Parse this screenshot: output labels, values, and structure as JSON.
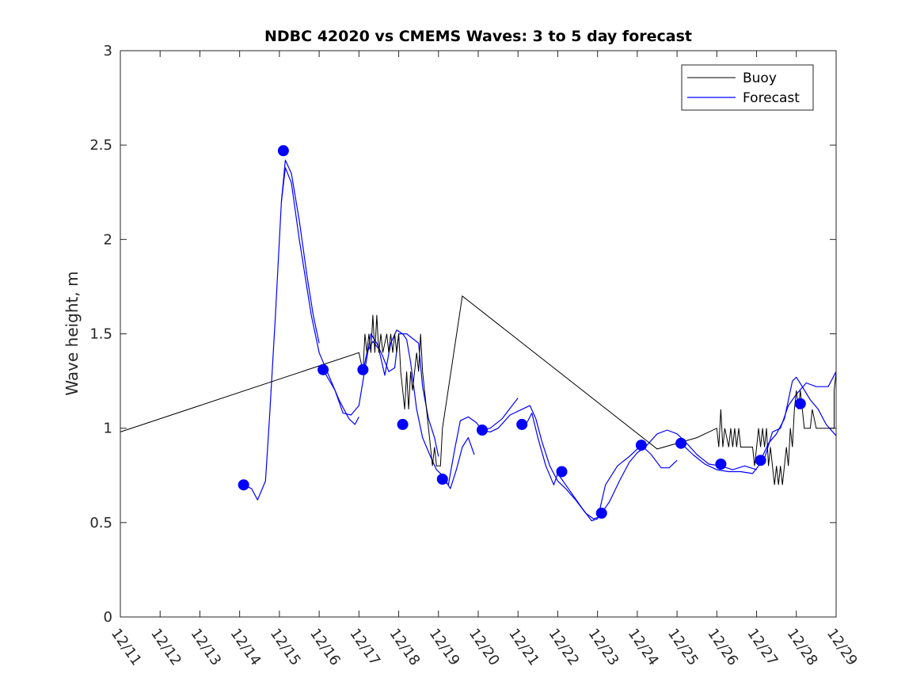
{
  "chart_data": {
    "type": "line",
    "title": "NDBC 42020 vs CMEMS Waves: 3 to 5 day forecast",
    "xlabel": "",
    "ylabel": "Wave height, m",
    "xlim": [
      0,
      18
    ],
    "ylim": [
      0,
      3
    ],
    "x_tick_labels": [
      "12/11",
      "12/12",
      "12/13",
      "12/14",
      "12/15",
      "12/16",
      "12/17",
      "12/18",
      "12/19",
      "12/20",
      "12/21",
      "12/22",
      "12/23",
      "12/24",
      "12/25",
      "12/26",
      "12/27",
      "12/28",
      "12/29"
    ],
    "y_tick_labels": [
      "0",
      "0.5",
      "1",
      "1.5",
      "2",
      "2.5",
      "3"
    ],
    "y_ticks": [
      0,
      0.5,
      1,
      1.5,
      2,
      2.5,
      3
    ],
    "legend": {
      "position": "top-right",
      "entries": [
        {
          "label": "Buoy",
          "color": "#000000"
        },
        {
          "label": "Forecast",
          "color": "#0000ff"
        }
      ]
    },
    "series": [
      {
        "name": "Buoy",
        "color": "#000000",
        "points": [
          [
            0,
            0.98
          ],
          [
            6.0,
            1.4
          ],
          [
            6.1,
            1.3
          ],
          [
            6.15,
            1.5
          ],
          [
            6.2,
            1.4
          ],
          [
            6.25,
            1.5
          ],
          [
            6.3,
            1.4
          ],
          [
            6.35,
            1.6
          ],
          [
            6.4,
            1.4
          ],
          [
            6.45,
            1.6
          ],
          [
            6.5,
            1.4
          ],
          [
            6.55,
            1.5
          ],
          [
            6.6,
            1.4
          ],
          [
            6.7,
            1.5
          ],
          [
            6.75,
            1.4
          ],
          [
            6.8,
            1.5
          ],
          [
            6.85,
            1.4
          ],
          [
            6.9,
            1.5
          ],
          [
            6.95,
            1.4
          ],
          [
            7.0,
            1.5
          ],
          [
            7.05,
            1.3
          ],
          [
            7.1,
            1.2
          ],
          [
            7.15,
            1.1
          ],
          [
            7.2,
            1.3
          ],
          [
            7.25,
            1.1
          ],
          [
            7.3,
            1.3
          ],
          [
            7.35,
            1.2
          ],
          [
            7.4,
            1.3
          ],
          [
            7.45,
            1.4
          ],
          [
            7.5,
            1.3
          ],
          [
            7.55,
            1.5
          ],
          [
            7.6,
            1.3
          ],
          [
            7.65,
            1.2
          ],
          [
            7.7,
            1.1
          ],
          [
            7.75,
            1.0
          ],
          [
            7.8,
            0.9
          ],
          [
            7.85,
            0.8
          ],
          [
            7.9,
            0.9
          ],
          [
            7.95,
            0.8
          ],
          [
            8.05,
            0.8
          ],
          [
            8.1,
            1.0
          ],
          [
            8.6,
            1.7
          ],
          [
            13.5,
            0.89
          ],
          [
            14.5,
            0.95
          ],
          [
            15.0,
            1.0
          ],
          [
            15.05,
            0.9
          ],
          [
            15.1,
            1.1
          ],
          [
            15.15,
            0.9
          ],
          [
            15.2,
            1.0
          ],
          [
            15.3,
            0.9
          ],
          [
            15.35,
            1.0
          ],
          [
            15.4,
            0.9
          ],
          [
            15.45,
            1.0
          ],
          [
            15.5,
            0.9
          ],
          [
            15.55,
            1.0
          ],
          [
            15.6,
            0.9
          ],
          [
            15.9,
            0.9
          ],
          [
            15.95,
            0.8
          ],
          [
            16.0,
            0.9
          ],
          [
            16.05,
            1.0
          ],
          [
            16.1,
            0.9
          ],
          [
            16.15,
            1.0
          ],
          [
            16.2,
            0.9
          ],
          [
            16.25,
            1.0
          ],
          [
            16.3,
            0.8
          ],
          [
            16.35,
            0.9
          ],
          [
            16.4,
            0.8
          ],
          [
            16.45,
            0.7
          ],
          [
            16.5,
            0.8
          ],
          [
            16.55,
            0.7
          ],
          [
            16.6,
            0.8
          ],
          [
            16.65,
            0.7
          ],
          [
            16.7,
            0.8
          ],
          [
            16.75,
            0.9
          ],
          [
            16.8,
            0.8
          ],
          [
            16.85,
            1.0
          ],
          [
            16.9,
            0.9
          ],
          [
            16.95,
            1.1
          ],
          [
            17.0,
            1.2
          ],
          [
            17.05,
            1.1
          ],
          [
            17.1,
            1.2
          ],
          [
            17.15,
            1.1
          ],
          [
            17.2,
            1.0
          ],
          [
            17.35,
            1.0
          ],
          [
            17.4,
            1.1
          ],
          [
            17.5,
            1.0
          ],
          [
            17.95,
            1.0
          ],
          [
            17.95,
            1.2
          ],
          [
            18.0,
            1.3
          ]
        ]
      },
      {
        "name": "Forecast",
        "color": "#0000ff",
        "segments": [
          [
            [
              3.1,
              0.7
            ],
            [
              3.3,
              0.68
            ],
            [
              3.45,
              0.62
            ],
            [
              3.65,
              0.72
            ],
            [
              3.75,
              1.05
            ],
            [
              3.9,
              1.6
            ],
            [
              4.05,
              2.2
            ],
            [
              4.15,
              2.42
            ],
            [
              4.3,
              2.35
            ],
            [
              4.5,
              2.1
            ],
            [
              4.7,
              1.8
            ],
            [
              4.85,
              1.6
            ],
            [
              5.0,
              1.45
            ]
          ],
          [
            [
              4.05,
              2.2
            ],
            [
              4.15,
              2.38
            ],
            [
              4.3,
              2.3
            ],
            [
              4.5,
              2.0
            ],
            [
              4.8,
              1.6
            ],
            [
              5.0,
              1.4
            ],
            [
              5.2,
              1.3
            ],
            [
              5.5,
              1.15
            ],
            [
              5.75,
              1.05
            ],
            [
              5.9,
              1.02
            ],
            [
              6.0,
              1.06
            ]
          ],
          [
            [
              5.1,
              1.31
            ],
            [
              5.4,
              1.2
            ],
            [
              5.6,
              1.08
            ],
            [
              5.8,
              1.07
            ],
            [
              6.0,
              1.12
            ],
            [
              6.1,
              1.25
            ],
            [
              6.3,
              1.5
            ],
            [
              6.45,
              1.45
            ],
            [
              6.6,
              1.38
            ],
            [
              6.75,
              1.3
            ],
            [
              6.9,
              1.32
            ],
            [
              7.0,
              1.5
            ],
            [
              7.2,
              1.5
            ],
            [
              7.5,
              1.45
            ],
            [
              7.6,
              1.22
            ],
            [
              7.75,
              1.05
            ],
            [
              7.9,
              0.95
            ],
            [
              8.0,
              0.85
            ]
          ],
          [
            [
              6.1,
              1.3
            ],
            [
              6.2,
              1.4
            ],
            [
              6.35,
              1.46
            ],
            [
              6.5,
              1.42
            ],
            [
              6.65,
              1.28
            ],
            [
              6.8,
              1.45
            ],
            [
              6.95,
              1.52
            ],
            [
              7.1,
              1.5
            ],
            [
              7.2,
              1.47
            ],
            [
              7.3,
              1.35
            ],
            [
              7.45,
              1.1
            ],
            [
              7.6,
              0.95
            ],
            [
              7.8,
              0.85
            ],
            [
              7.95,
              0.78
            ],
            [
              8.1,
              0.75
            ],
            [
              8.3,
              0.68
            ],
            [
              8.45,
              0.78
            ],
            [
              8.6,
              0.9
            ],
            [
              8.75,
              0.95
            ],
            [
              8.9,
              0.86
            ]
          ],
          [
            [
              8.1,
              0.73
            ],
            [
              8.25,
              0.7
            ],
            [
              8.4,
              0.88
            ],
            [
              8.55,
              1.04
            ],
            [
              8.75,
              1.06
            ],
            [
              8.95,
              1.03
            ],
            [
              9.1,
              0.99
            ],
            [
              9.3,
              1.0
            ],
            [
              9.6,
              1.05
            ],
            [
              10.0,
              1.16
            ]
          ],
          [
            [
              9.1,
              0.99
            ],
            [
              9.3,
              0.98
            ],
            [
              9.5,
              1.0
            ],
            [
              9.8,
              1.07
            ],
            [
              10.1,
              1.1
            ],
            [
              10.3,
              1.12
            ],
            [
              10.45,
              1.05
            ],
            [
              10.6,
              0.93
            ],
            [
              10.8,
              0.8
            ],
            [
              11.0,
              0.72
            ],
            [
              11.2,
              0.68
            ],
            [
              11.45,
              0.62
            ],
            [
              11.7,
              0.55
            ],
            [
              11.9,
              0.52
            ],
            [
              12.05,
              0.53
            ]
          ],
          [
            [
              10.2,
              1.02
            ],
            [
              10.35,
              1.08
            ],
            [
              10.5,
              0.95
            ],
            [
              10.7,
              0.8
            ],
            [
              10.9,
              0.7
            ],
            [
              11.0,
              0.76
            ],
            [
              11.3,
              0.67
            ],
            [
              11.6,
              0.58
            ],
            [
              11.85,
              0.51
            ],
            [
              12.0,
              0.52
            ],
            [
              12.2,
              0.7
            ],
            [
              12.5,
              0.8
            ],
            [
              12.8,
              0.85
            ],
            [
              13.1,
              0.91
            ],
            [
              13.35,
              0.86
            ],
            [
              13.6,
              0.79
            ],
            [
              13.8,
              0.79
            ],
            [
              14.0,
              0.83
            ]
          ],
          [
            [
              12.1,
              0.55
            ],
            [
              12.3,
              0.61
            ],
            [
              12.55,
              0.72
            ],
            [
              12.8,
              0.82
            ],
            [
              13.0,
              0.87
            ],
            [
              13.2,
              0.9
            ],
            [
              13.5,
              0.97
            ],
            [
              13.75,
              0.99
            ],
            [
              14.0,
              0.97
            ],
            [
              14.2,
              0.93
            ],
            [
              14.5,
              0.86
            ],
            [
              14.8,
              0.81
            ],
            [
              15.1,
              0.8
            ],
            [
              15.4,
              0.78
            ],
            [
              15.7,
              0.8
            ],
            [
              16.0,
              0.78
            ]
          ],
          [
            [
              14.1,
              0.92
            ],
            [
              14.4,
              0.86
            ],
            [
              14.7,
              0.81
            ],
            [
              15.0,
              0.78
            ],
            [
              15.3,
              0.77
            ],
            [
              15.6,
              0.77
            ],
            [
              15.9,
              0.76
            ],
            [
              16.2,
              0.84
            ],
            [
              16.4,
              0.98
            ],
            [
              16.6,
              1.0
            ],
            [
              16.8,
              1.12
            ],
            [
              17.0,
              1.18
            ],
            [
              17.25,
              1.24
            ],
            [
              17.5,
              1.22
            ],
            [
              17.8,
              1.22
            ],
            [
              18.0,
              1.3
            ]
          ],
          [
            [
              16.1,
              0.83
            ],
            [
              16.3,
              0.92
            ],
            [
              16.5,
              0.97
            ],
            [
              16.7,
              1.05
            ],
            [
              16.9,
              1.25
            ],
            [
              17.0,
              1.27
            ],
            [
              17.15,
              1.22
            ],
            [
              17.35,
              1.15
            ],
            [
              17.55,
              1.1
            ],
            [
              17.75,
              1.02
            ],
            [
              18.0,
              0.96
            ]
          ]
        ]
      }
    ],
    "markers": {
      "name": "Forecast start points",
      "color": "#0000ff",
      "points": [
        [
          3.1,
          0.7
        ],
        [
          4.1,
          2.47
        ],
        [
          5.1,
          1.31
        ],
        [
          6.1,
          1.31
        ],
        [
          7.1,
          1.02
        ],
        [
          8.1,
          0.73
        ],
        [
          9.1,
          0.99
        ],
        [
          10.1,
          1.02
        ],
        [
          11.1,
          0.77
        ],
        [
          12.1,
          0.55
        ],
        [
          13.1,
          0.91
        ],
        [
          14.1,
          0.92
        ],
        [
          15.1,
          0.81
        ],
        [
          16.1,
          0.83
        ],
        [
          17.1,
          1.13
        ]
      ]
    }
  }
}
